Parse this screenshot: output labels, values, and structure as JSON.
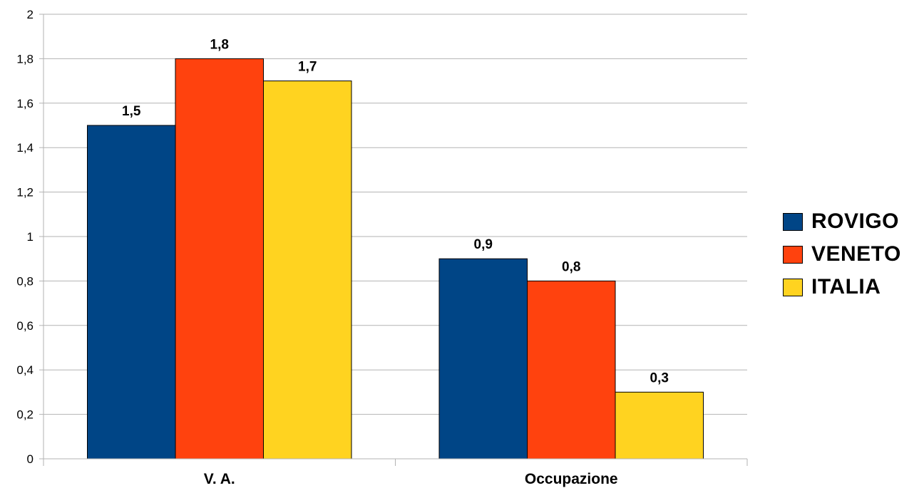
{
  "chart_data": {
    "type": "bar",
    "categories": [
      "V. A.",
      "Occupazione"
    ],
    "series": [
      {
        "name": "ROVIGO",
        "values": [
          1.5,
          0.9
        ],
        "color": "#004586"
      },
      {
        "name": "VENETO",
        "values": [
          1.8,
          0.8
        ],
        "color": "#ff420e"
      },
      {
        "name": "ITALIA",
        "values": [
          1.7,
          0.3
        ],
        "color": "#ffd320"
      }
    ],
    "value_labels": [
      [
        "1,5",
        "0,9"
      ],
      [
        "1,8",
        "0,8"
      ],
      [
        "1,7",
        "0,3"
      ]
    ],
    "ylim": [
      0,
      2
    ],
    "yticks": [
      0,
      0.2,
      0.4,
      0.6,
      0.8,
      1,
      1.2,
      1.4,
      1.6,
      1.8,
      2
    ],
    "ytick_labels": [
      "0",
      "0,2",
      "0,4",
      "0,6",
      "0,8",
      "1",
      "1,2",
      "1,4",
      "1,6",
      "1,8",
      "2"
    ],
    "grid": true,
    "legend_position": "right",
    "title": "",
    "xlabel": "",
    "ylabel": ""
  }
}
